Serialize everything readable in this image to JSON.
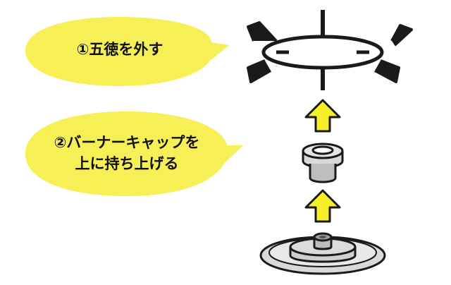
{
  "instructions": {
    "step1": {
      "label": "①五徳を外す"
    },
    "step2": {
      "line1": "②バーナーキャップを",
      "line2": "上に持ち上げる"
    }
  },
  "colors": {
    "bubble": "#f6ef55",
    "arrow": "#f6ef28",
    "outline": "#1a1a1a",
    "plate": "#d9d9d9",
    "cap": "#cfcfcf"
  },
  "icons": {
    "grate": "gotoku-grate-icon",
    "cap": "burner-cap-icon",
    "base": "burner-base-icon",
    "arrow": "up-arrow-icon"
  }
}
